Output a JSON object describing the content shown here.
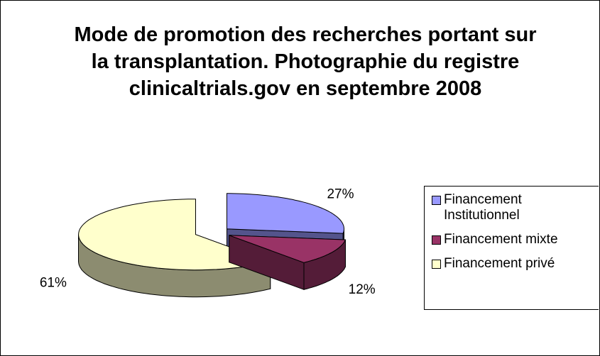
{
  "chart_data": {
    "type": "pie3d",
    "title": "Mode de promotion des recherches portant sur la transplantation. Photographie du registre clinicaltrials.gov en septembre 2008",
    "categories": [
      "Financement Institutionnel",
      "Financement mixte",
      "Financement privé"
    ],
    "values": [
      27,
      12,
      61
    ],
    "value_labels": [
      "27%",
      "12%",
      "61%"
    ],
    "colors": [
      "#9999ff",
      "#993366",
      "#ffffcc"
    ],
    "legend": "right"
  }
}
